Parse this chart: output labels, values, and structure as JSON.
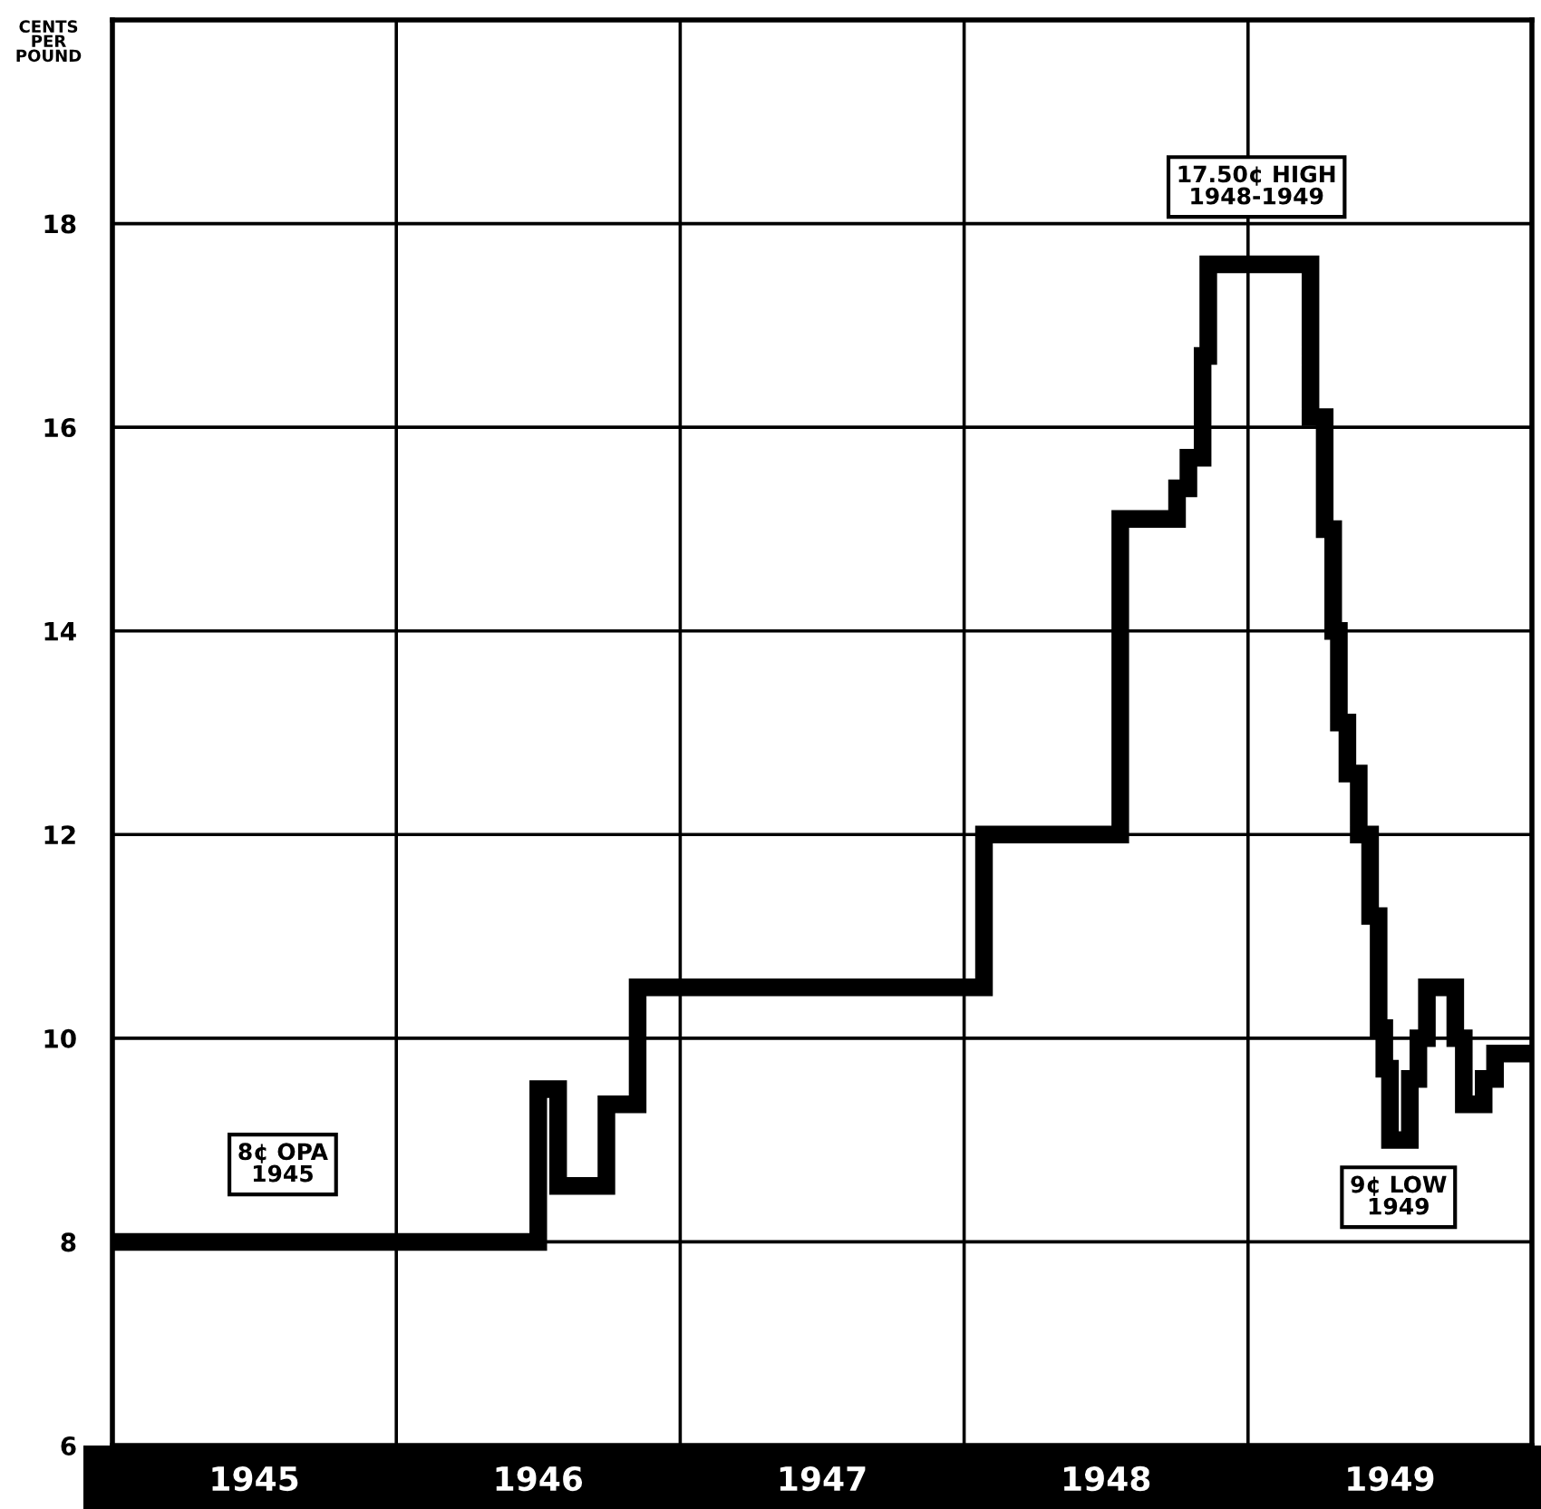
{
  "chart_data": {
    "type": "step",
    "ylabel": "CENTS\nPER\nPOUND",
    "x": [
      1945.0,
      1946.5,
      1946.57,
      1946.74,
      1946.85,
      1948.07,
      1948.55,
      1948.75,
      1948.79,
      1948.84,
      1948.86,
      1949.22,
      1949.27,
      1949.3,
      1949.32,
      1949.35,
      1949.39,
      1949.43,
      1949.46,
      1949.48,
      1949.5,
      1949.57,
      1949.6,
      1949.63,
      1949.73,
      1949.76,
      1949.83,
      1949.87,
      1950.0
    ],
    "series": [
      {
        "color": "#000000",
        "values": [
          8.0,
          9.5,
          8.55,
          9.35,
          10.5,
          12.0,
          15.1,
          15.4,
          15.7,
          16.7,
          17.6,
          16.1,
          15.0,
          14.0,
          13.1,
          12.6,
          12.0,
          11.2,
          10.1,
          9.7,
          9.0,
          9.6,
          10.0,
          10.5,
          10.0,
          9.35,
          9.6,
          9.85,
          9.85
        ]
      }
    ],
    "xlim": [
      1945,
      1950
    ],
    "ylim": [
      6,
      20
    ],
    "xticks": [
      {
        "value": 1945.5,
        "label": "1945"
      },
      {
        "value": 1946,
        "label": null
      },
      {
        "value": 1946.5,
        "label": "1946"
      },
      {
        "value": 1947,
        "label": null
      },
      {
        "value": 1947.5,
        "label": "1947"
      },
      {
        "value": 1948,
        "label": null
      },
      {
        "value": 1948.5,
        "label": "1948"
      },
      {
        "value": 1949,
        "label": null
      },
      {
        "value": 1949.5,
        "label": "1949"
      }
    ],
    "yticks": [
      6,
      8,
      10,
      12,
      14,
      16,
      18
    ],
    "grid": true,
    "annotations": [
      {
        "text": "8¢ OPA\n1945",
        "x": 1945.6,
        "y": 8.0
      },
      {
        "text": "17.50¢ HIGH\n1948-1949",
        "x": 1949.03,
        "y": 17.6
      },
      {
        "text": "9¢ LOW\n1949",
        "x": 1949.53,
        "y": 9.0
      }
    ]
  }
}
